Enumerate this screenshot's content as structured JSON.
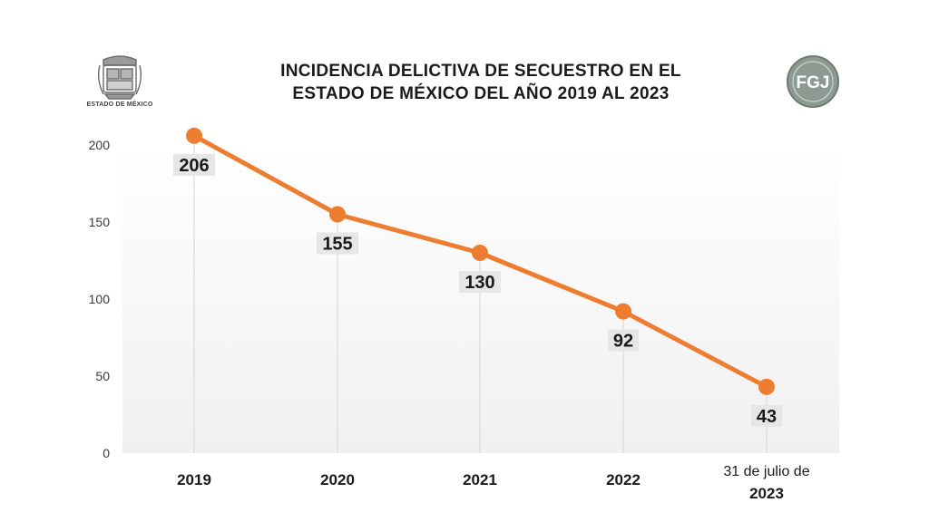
{
  "header": {
    "title_line1": "INCIDENCIA DELICTIVA DE SECUESTRO EN EL",
    "title_line2": "ESTADO DE MÉXICO DEL AÑO 2019 AL 2023"
  },
  "logos": {
    "left_caption": "ESTADO DE MÉXICO",
    "right_text": "FGJ"
  },
  "colors": {
    "line": "#ED7D31",
    "label_bg": "#E6E6E6",
    "plot_bg_top": "#FFFFFF",
    "plot_bg_bottom": "#F0F0F0",
    "gridline": "#D4D4D4"
  },
  "chart_data": {
    "type": "line",
    "title": "INCIDENCIA DELICTIVA DE SECUESTRO EN EL ESTADO DE MÉXICO DEL AÑO 2019 AL 2023",
    "categories": [
      {
        "line1": "",
        "line2": "2019"
      },
      {
        "line1": "",
        "line2": "2020"
      },
      {
        "line1": "",
        "line2": "2021"
      },
      {
        "line1": "",
        "line2": "2022"
      },
      {
        "line1": "31 de julio de",
        "line2": "2023"
      }
    ],
    "series": [
      {
        "values": [
          206,
          155,
          130,
          92,
          43
        ]
      }
    ],
    "yticks": [
      0,
      50,
      100,
      150,
      200
    ],
    "ylim": [
      0,
      210
    ],
    "xlabel": "",
    "ylabel": "",
    "grid": "vertical",
    "legend": "none",
    "data_labels": "below"
  }
}
